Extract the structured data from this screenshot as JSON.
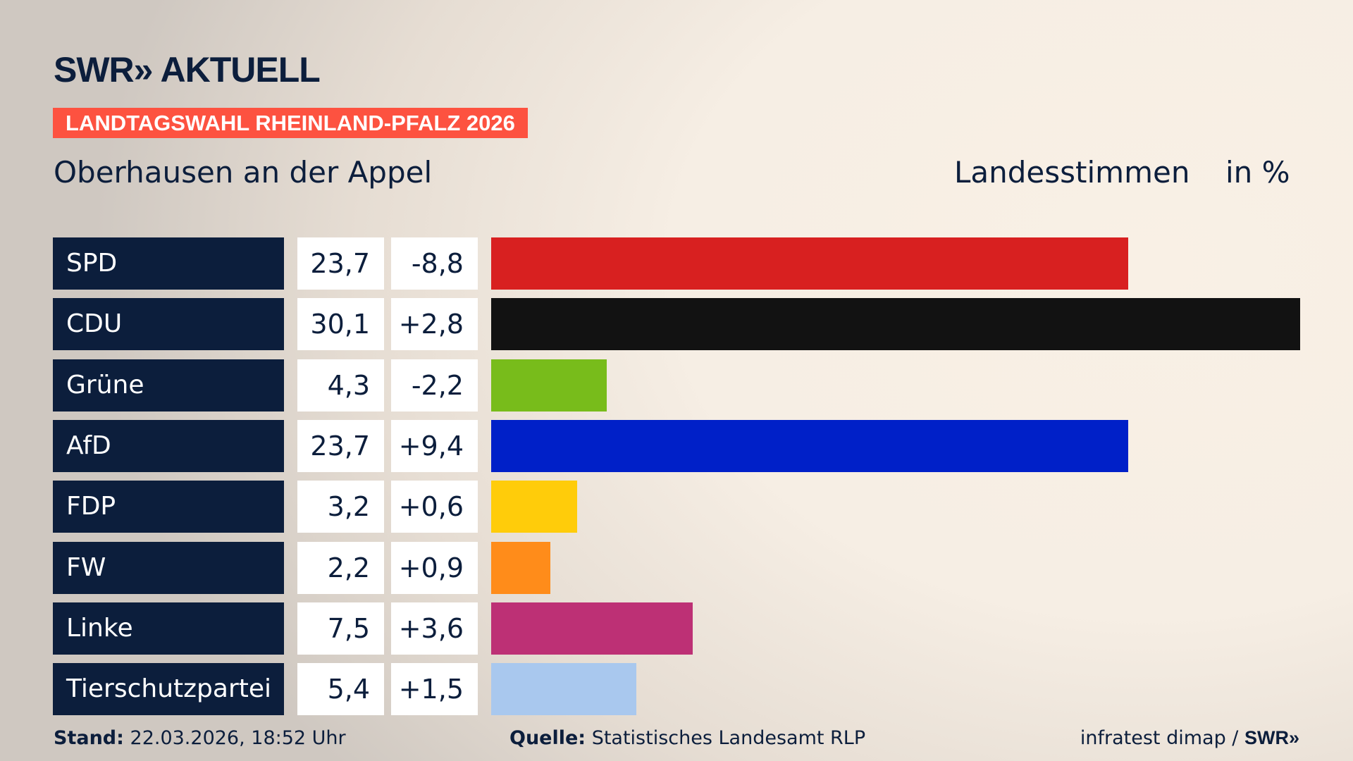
{
  "header": {
    "logo": "SWR» AKTUELL",
    "badge": "LANDTAGSWAHL RHEINLAND-PFALZ 2026",
    "place": "Oberhausen an der Appel",
    "measure": "Landesstimmen",
    "unit": "in %"
  },
  "colors": {
    "navy": "#0c1e3c",
    "badge": "#fd5240"
  },
  "chart_data": {
    "type": "bar",
    "orientation": "horizontal",
    "xlim": [
      0,
      30.1
    ],
    "categories": [
      "SPD",
      "CDU",
      "Grüne",
      "AfD",
      "FDP",
      "FW",
      "Linke",
      "Tierschutzpartei"
    ],
    "values": [
      23.7,
      30.1,
      4.3,
      23.7,
      3.2,
      2.2,
      7.5,
      5.4
    ],
    "value_labels": [
      "23,7",
      "30,1",
      "4,3",
      "23,7",
      "3,2",
      "2,2",
      "7,5",
      "5,4"
    ],
    "diff_labels": [
      "-8,8",
      "+2,8",
      "-2,2",
      "+9,4",
      "+0,6",
      "+0,9",
      "+3,6",
      "+1,5"
    ],
    "colors": [
      "#d82020",
      "#121212",
      "#78bc1b",
      "#0020c8",
      "#ffcc0a",
      "#ff8c1a",
      "#bd3075",
      "#a9c8ee"
    ]
  },
  "footer": {
    "stand_label": "Stand:",
    "stand": "22.03.2026, 18:52 Uhr",
    "source_label": "Quelle:",
    "source": "Statistisches Landesamt RLP",
    "credit": "infratest dimap / ",
    "credit_logo": "SWR»"
  }
}
